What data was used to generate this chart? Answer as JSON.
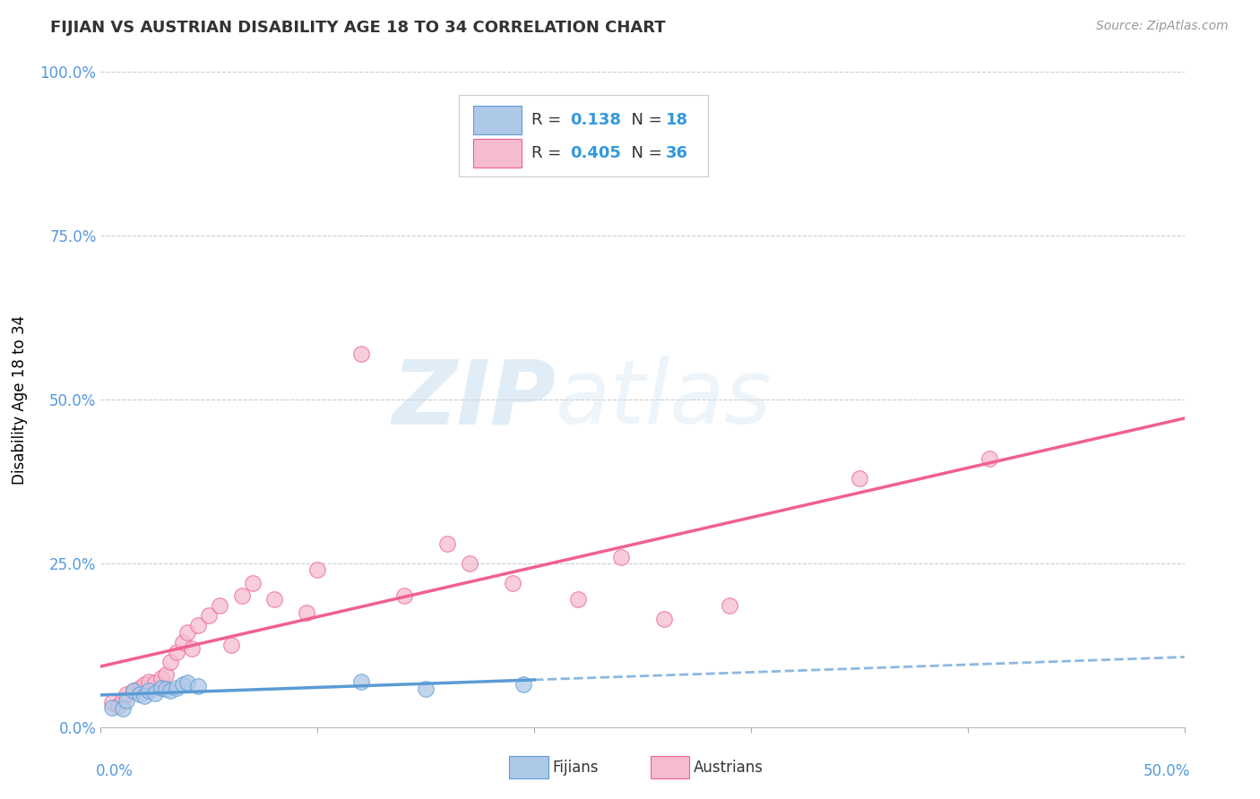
{
  "title": "FIJIAN VS AUSTRIAN DISABILITY AGE 18 TO 34 CORRELATION CHART",
  "source": "Source: ZipAtlas.com",
  "ylabel": "Disability Age 18 to 34",
  "xlim": [
    0.0,
    0.5
  ],
  "ylim": [
    0.0,
    1.0
  ],
  "ytick_labels": [
    "0.0%",
    "25.0%",
    "50.0%",
    "75.0%",
    "100.0%"
  ],
  "ytick_values": [
    0.0,
    0.25,
    0.5,
    0.75,
    1.0
  ],
  "legend_r_fijian": "0.138",
  "legend_n_fijian": "18",
  "legend_r_austrian": "0.405",
  "legend_n_austrian": "36",
  "fijian_color": "#aec8e8",
  "austrian_color": "#f5bcd0",
  "fijian_line_color": "#5b9bd5",
  "austrian_line_color": "#f06090",
  "watermark_zip": "ZIP",
  "watermark_atlas": "atlas",
  "fijians_x": [
    0.005,
    0.01,
    0.012,
    0.015,
    0.018,
    0.02,
    0.022,
    0.025,
    0.028,
    0.03,
    0.032,
    0.035,
    0.038,
    0.04,
    0.045,
    0.12,
    0.15,
    0.195
  ],
  "fijians_y": [
    0.03,
    0.028,
    0.04,
    0.055,
    0.05,
    0.048,
    0.055,
    0.052,
    0.06,
    0.058,
    0.055,
    0.06,
    0.065,
    0.068,
    0.062,
    0.07,
    0.058,
    0.065
  ],
  "austrians_x": [
    0.005,
    0.008,
    0.01,
    0.012,
    0.015,
    0.018,
    0.02,
    0.022,
    0.025,
    0.028,
    0.03,
    0.032,
    0.035,
    0.038,
    0.04,
    0.042,
    0.045,
    0.05,
    0.055,
    0.06,
    0.065,
    0.07,
    0.08,
    0.095,
    0.1,
    0.12,
    0.14,
    0.16,
    0.17,
    0.19,
    0.22,
    0.24,
    0.26,
    0.29,
    0.35,
    0.41
  ],
  "austrians_y": [
    0.038,
    0.032,
    0.042,
    0.05,
    0.055,
    0.06,
    0.065,
    0.07,
    0.068,
    0.075,
    0.08,
    0.1,
    0.115,
    0.13,
    0.145,
    0.12,
    0.155,
    0.17,
    0.185,
    0.125,
    0.2,
    0.22,
    0.195,
    0.175,
    0.24,
    0.57,
    0.2,
    0.28,
    0.25,
    0.22,
    0.195,
    0.26,
    0.165,
    0.185,
    0.38,
    0.41
  ]
}
